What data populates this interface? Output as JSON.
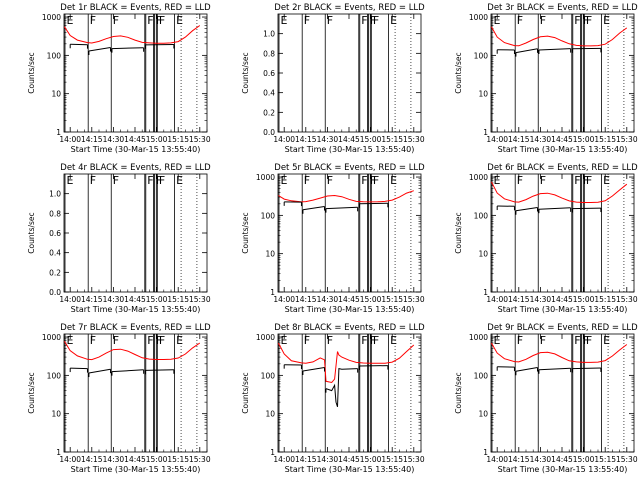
{
  "common": {
    "xlabel": "Start Time (30-Mar-15 13:55:40)",
    "ylabel": "Counts/sec",
    "x_tick_labels": [
      "14:00",
      "14:15",
      "14:30",
      "14:45",
      "15:00",
      "15:15",
      "15:30"
    ],
    "x_tick_values_min": [
      0,
      15,
      30,
      45,
      60,
      75,
      90
    ],
    "xlim_min": [
      -4.3,
      95
    ],
    "log_ticks": [
      1,
      10,
      100,
      1000
    ],
    "log_tick_labels": [
      "1",
      "10",
      "100",
      "1000"
    ],
    "colors": {
      "events": "#000000",
      "lld": "#ff0000",
      "axes": "#000000"
    }
  },
  "markers": [
    {
      "t": -3.6,
      "label": "E"
    },
    {
      "t": 12.5,
      "label": "F"
    },
    {
      "t": 28.5,
      "label": "F"
    },
    {
      "t": 52.5,
      "label": "F"
    },
    {
      "t": 58.5,
      "label": "F"
    },
    {
      "t": 60.5,
      "label": "F"
    },
    {
      "t": 72.5,
      "label": "E"
    }
  ],
  "extra_vlines": [
    51.8,
    57.8,
    59.8
  ],
  "chart_data": [
    {
      "type": "line",
      "title": "Det 1r BLACK = Events, RED = LLD",
      "scale": "log",
      "ylim": [
        1,
        1200
      ],
      "series": [
        {
          "name": "LLD",
          "color": "#ff0000",
          "x": [
            -4,
            0,
            5,
            12,
            15,
            20,
            25,
            30,
            35,
            40,
            45,
            50,
            55,
            60,
            65,
            70,
            75,
            80,
            85,
            90
          ],
          "y": [
            560,
            330,
            250,
            215,
            210,
            232,
            272,
            310,
            322,
            296,
            250,
            218,
            212,
            206,
            208,
            212,
            228,
            300,
            440,
            600
          ]
        },
        {
          "name": "Events",
          "color": "#000000",
          "segments": [
            {
              "x": [
                0,
                12
              ],
              "y": [
                195,
                190
              ]
            },
            {
              "x": [
                13,
                28
              ],
              "y": [
                130,
                160
              ]
            },
            {
              "x": [
                29,
                51
              ],
              "y": [
                150,
                158
              ]
            },
            {
              "x": [
                52,
                72
              ],
              "y": [
                188,
                192
              ]
            }
          ]
        }
      ]
    },
    {
      "type": "line",
      "title": "Det 2r BLACK = Events, RED = LLD",
      "scale": "lin",
      "ylim": [
        0,
        1.2
      ],
      "y_tick_values": [
        0,
        0.2,
        0.4,
        0.6,
        0.8,
        1.0
      ],
      "y_tick_labels": [
        "0.0",
        "0.2",
        "0.4",
        "0.6",
        "0.8",
        "1.0"
      ],
      "series": []
    },
    {
      "type": "line",
      "title": "Det 3r BLACK = Events, RED = LLD",
      "scale": "log",
      "ylim": [
        1,
        1200
      ],
      "series": [
        {
          "name": "LLD",
          "color": "#ff0000",
          "x": [
            -4,
            0,
            5,
            12,
            15,
            20,
            25,
            30,
            35,
            40,
            45,
            50,
            55,
            60,
            65,
            70,
            75,
            80,
            85,
            90
          ],
          "y": [
            560,
            300,
            215,
            180,
            178,
            210,
            260,
            305,
            318,
            290,
            238,
            200,
            182,
            176,
            176,
            180,
            196,
            260,
            380,
            520
          ]
        },
        {
          "name": "Events",
          "color": "#000000",
          "segments": [
            {
              "x": [
                0,
                12
              ],
              "y": [
                140,
                138
              ]
            },
            {
              "x": [
                13,
                28
              ],
              "y": [
                118,
                148
              ]
            },
            {
              "x": [
                29,
                51
              ],
              "y": [
                138,
                150
              ]
            },
            {
              "x": [
                52,
                72
              ],
              "y": [
                148,
                152
              ]
            }
          ]
        }
      ]
    },
    {
      "type": "line",
      "title": "Det 4r BLACK = Events, RED = LLD",
      "scale": "lin",
      "ylim": [
        0,
        1.2
      ],
      "y_tick_values": [
        0,
        0.2,
        0.4,
        0.6,
        0.8,
        1.0
      ],
      "y_tick_labels": [
        "0.0",
        "0.2",
        "0.4",
        "0.6",
        "0.8",
        "1.0"
      ],
      "series": []
    },
    {
      "type": "line",
      "title": "Det 5r BLACK = Events, RED = LLD",
      "scale": "log",
      "ylim": [
        1,
        1200
      ],
      "series": [
        {
          "name": "LLD",
          "color": "#ff0000",
          "x": [
            -4,
            0,
            5,
            12,
            15,
            20,
            25,
            30,
            35,
            40,
            45,
            50,
            55,
            60,
            65,
            70,
            75,
            80,
            85,
            90
          ],
          "y": [
            330,
            265,
            240,
            225,
            228,
            250,
            282,
            320,
            330,
            306,
            262,
            232,
            226,
            224,
            226,
            232,
            250,
            300,
            380,
            440
          ]
        },
        {
          "name": "Events",
          "color": "#000000",
          "segments": [
            {
              "x": [
                0,
                12
              ],
              "y": [
                225,
                222
              ]
            },
            {
              "x": [
                13,
                28
              ],
              "y": [
                140,
                170
              ]
            },
            {
              "x": [
                29,
                51
              ],
              "y": [
                150,
                162
              ]
            },
            {
              "x": [
                52,
                72
              ],
              "y": [
                200,
                206
              ]
            }
          ]
        }
      ]
    },
    {
      "type": "line",
      "title": "Det 6r BLACK = Events, RED = LLD",
      "scale": "log",
      "ylim": [
        1,
        1200
      ],
      "series": [
        {
          "name": "LLD",
          "color": "#ff0000",
          "x": [
            -4,
            0,
            5,
            12,
            15,
            20,
            25,
            30,
            35,
            40,
            45,
            50,
            55,
            60,
            65,
            70,
            75,
            80,
            85,
            90
          ],
          "y": [
            750,
            380,
            270,
            225,
            222,
            258,
            318,
            370,
            378,
            342,
            282,
            238,
            222,
            216,
            216,
            220,
            240,
            320,
            460,
            650
          ]
        },
        {
          "name": "Events",
          "color": "#000000",
          "segments": [
            {
              "x": [
                0,
                12
              ],
              "y": [
                175,
                172
              ]
            },
            {
              "x": [
                13,
                28
              ],
              "y": [
                132,
                160
              ]
            },
            {
              "x": [
                29,
                51
              ],
              "y": [
                145,
                157
              ]
            },
            {
              "x": [
                52,
                72
              ],
              "y": [
                150,
                155
              ]
            }
          ]
        }
      ]
    },
    {
      "type": "line",
      "title": "Det 7r BLACK = Events, RED = LLD",
      "scale": "log",
      "ylim": [
        1,
        1200
      ],
      "series": [
        {
          "name": "LLD",
          "color": "#ff0000",
          "x": [
            -4,
            0,
            5,
            12,
            15,
            20,
            25,
            30,
            35,
            40,
            45,
            50,
            55,
            60,
            65,
            70,
            75,
            80,
            85,
            90
          ],
          "y": [
            780,
            440,
            322,
            262,
            258,
            300,
            380,
            470,
            480,
            430,
            350,
            288,
            266,
            260,
            260,
            264,
            284,
            360,
            520,
            700
          ]
        },
        {
          "name": "Events",
          "color": "#000000",
          "segments": [
            {
              "x": [
                0,
                12
              ],
              "y": [
                155,
                150
              ]
            },
            {
              "x": [
                13,
                28
              ],
              "y": [
                115,
                145
              ]
            },
            {
              "x": [
                29,
                51
              ],
              "y": [
                125,
                140
              ]
            },
            {
              "x": [
                52,
                72
              ],
              "y": [
                135,
                140
              ]
            }
          ]
        }
      ]
    },
    {
      "type": "line",
      "title": "Det 8r BLACK = Events, RED = LLD",
      "scale": "log",
      "ylim": [
        1,
        1200
      ],
      "series": [
        {
          "name": "LLD",
          "color": "#ff0000",
          "x": [
            -4,
            0,
            5,
            12,
            15,
            20,
            25,
            28,
            29,
            33,
            35,
            37,
            38,
            40,
            45,
            50,
            55,
            60,
            65,
            70,
            75,
            80,
            85,
            90
          ],
          "y": [
            700,
            360,
            240,
            212,
            208,
            225,
            285,
            255,
            70,
            65,
            80,
            420,
            340,
            300,
            248,
            218,
            210,
            206,
            206,
            208,
            222,
            280,
            420,
            620
          ]
        },
        {
          "name": "Events",
          "color": "#000000",
          "segments": [
            {
              "x": [
                0,
                12
              ],
              "y": [
                190,
                186
              ]
            },
            {
              "x": [
                13,
                28
              ],
              "y": [
                130,
                160
              ]
            },
            {
              "x": [
                29,
                33,
                35,
                36,
                37,
                38,
                40,
                51
              ],
              "y": [
                45,
                40,
                55,
                20,
                15,
                150,
                145,
                150
              ]
            },
            {
              "x": [
                52,
                72
              ],
              "y": [
                175,
                180
              ]
            }
          ]
        }
      ]
    },
    {
      "type": "line",
      "title": "Det 9r BLACK = Events, RED = LLD",
      "scale": "log",
      "ylim": [
        1,
        1200
      ],
      "series": [
        {
          "name": "LLD",
          "color": "#ff0000",
          "x": [
            -4,
            0,
            5,
            12,
            15,
            20,
            25,
            30,
            35,
            40,
            45,
            50,
            55,
            60,
            65,
            70,
            75,
            80,
            85,
            90
          ],
          "y": [
            700,
            380,
            272,
            228,
            224,
            262,
            330,
            392,
            400,
            362,
            292,
            240,
            224,
            218,
            218,
            222,
            242,
            320,
            460,
            640
          ]
        },
        {
          "name": "Events",
          "color": "#000000",
          "segments": [
            {
              "x": [
                0,
                12
              ],
              "y": [
                168,
                164
              ]
            },
            {
              "x": [
                13,
                28
              ],
              "y": [
                128,
                160
              ]
            },
            {
              "x": [
                29,
                51
              ],
              "y": [
                140,
                154
              ]
            },
            {
              "x": [
                52,
                72
              ],
              "y": [
                150,
                156
              ]
            }
          ]
        }
      ]
    }
  ]
}
